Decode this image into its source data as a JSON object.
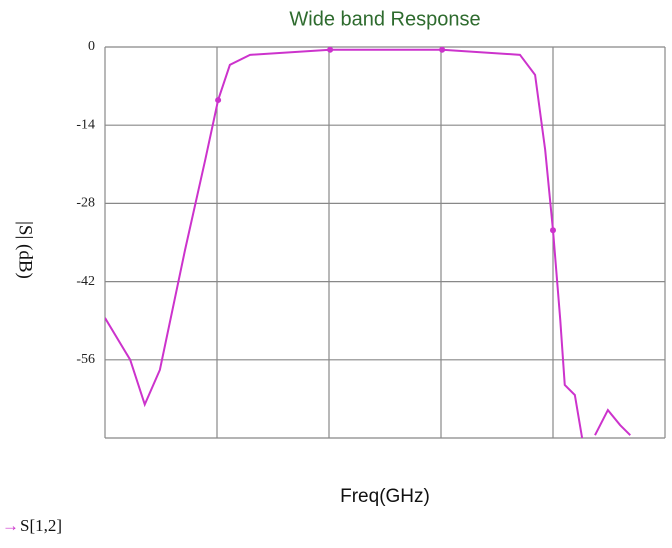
{
  "chart_data": {
    "type": "line",
    "title": "Wide band Response",
    "x_label": "Freq(GHz)",
    "y_label": "|S| (dB)",
    "xlim": [
      0,
      10
    ],
    "xticks": [
      0,
      2,
      4,
      6,
      8,
      10
    ],
    "ylim": [
      -70,
      0
    ],
    "yticks": [
      0,
      -14,
      -28,
      -42,
      -56
    ],
    "grid": true,
    "x": [
      0,
      0.45,
      0.71,
      0.98,
      1.43,
      1.79,
      2.02,
      2.23,
      2.59,
      4.02,
      6.02,
      7.41,
      7.68,
      7.86,
      8.0,
      8.13,
      8.21,
      8.39,
      8.52,
      null,
      8.75,
      8.98,
      9.2,
      9.38
    ],
    "series": [
      {
        "name": "S[1,2]",
        "color": "#cc33cc",
        "values": [
          -48.5,
          -56,
          -64,
          -57.8,
          -36.3,
          -20.2,
          -9.5,
          -3.2,
          -1.4,
          -0.5,
          -0.5,
          -1.4,
          -5,
          -18.4,
          -32.8,
          -48.9,
          -60.5,
          -62.3,
          -70,
          null,
          -69.5,
          -65,
          -67.7,
          -69.5
        ]
      }
    ]
  }
}
